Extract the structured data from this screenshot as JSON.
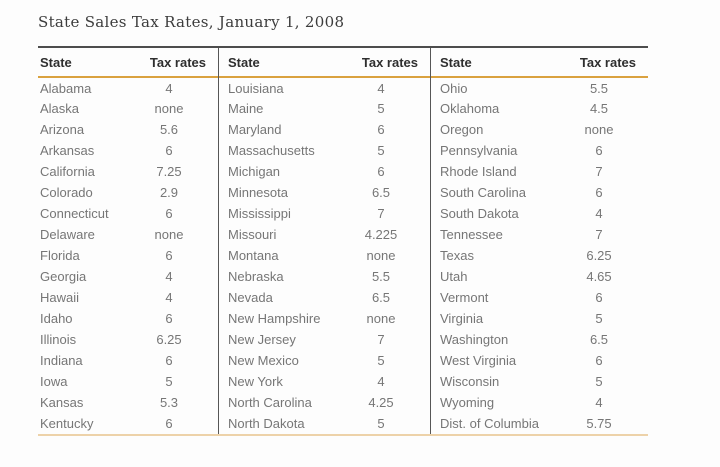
{
  "title": "State Sales Tax Rates, January 1, 2008",
  "table": {
    "columns": [
      "State",
      "Tax rates"
    ],
    "groups": [
      {
        "rows": [
          [
            "Alabama",
            "4"
          ],
          [
            "Alaska",
            "none"
          ],
          [
            "Arizona",
            "5.6"
          ],
          [
            "Arkansas",
            "6"
          ],
          [
            "California",
            "7.25"
          ],
          [
            "Colorado",
            "2.9"
          ],
          [
            "Connecticut",
            "6"
          ],
          [
            "Delaware",
            "none"
          ],
          [
            "Florida",
            "6"
          ],
          [
            "Georgia",
            "4"
          ],
          [
            "Hawaii",
            "4"
          ],
          [
            "Idaho",
            "6"
          ],
          [
            "Illinois",
            "6.25"
          ],
          [
            "Indiana",
            "6"
          ],
          [
            "Iowa",
            "5"
          ],
          [
            "Kansas",
            "5.3"
          ],
          [
            "Kentucky",
            "6"
          ]
        ]
      },
      {
        "rows": [
          [
            "Louisiana",
            "4"
          ],
          [
            "Maine",
            "5"
          ],
          [
            "Maryland",
            "6"
          ],
          [
            "Massachusetts",
            "5"
          ],
          [
            "Michigan",
            "6"
          ],
          [
            "Minnesota",
            "6.5"
          ],
          [
            "Mississippi",
            "7"
          ],
          [
            "Missouri",
            "4.225"
          ],
          [
            "Montana",
            "none"
          ],
          [
            "Nebraska",
            "5.5"
          ],
          [
            "Nevada",
            "6.5"
          ],
          [
            "New Hampshire",
            "none"
          ],
          [
            "New Jersey",
            "7"
          ],
          [
            "New Mexico",
            "5"
          ],
          [
            "New York",
            "4"
          ],
          [
            "North Carolina",
            "4.25"
          ],
          [
            "North Dakota",
            "5"
          ]
        ]
      },
      {
        "rows": [
          [
            "Ohio",
            "5.5"
          ],
          [
            "Oklahoma",
            "4.5"
          ],
          [
            "Oregon",
            "none"
          ],
          [
            "Pennsylvania",
            "6"
          ],
          [
            "Rhode Island",
            "7"
          ],
          [
            "South Carolina",
            "6"
          ],
          [
            "South Dakota",
            "4"
          ],
          [
            "Tennessee",
            "7"
          ],
          [
            "Texas",
            "6.25"
          ],
          [
            "Utah",
            "4.65"
          ],
          [
            "Vermont",
            "6"
          ],
          [
            "Virginia",
            "5"
          ],
          [
            "Washington",
            "6.5"
          ],
          [
            "West Virginia",
            "6"
          ],
          [
            "Wisconsin",
            "5"
          ],
          [
            "Wyoming",
            "4"
          ],
          [
            "Dist. of Columbia",
            "5.75"
          ]
        ]
      }
    ]
  },
  "colors": {
    "top_rule": "#4d4d4d",
    "divider_rule": "#565656",
    "header_underline": "#daa23f",
    "bottom_rule": "#edd2a9",
    "header_text": "#2f2f2f",
    "body_text": "#767676",
    "title_text": "#3c3c3c"
  }
}
